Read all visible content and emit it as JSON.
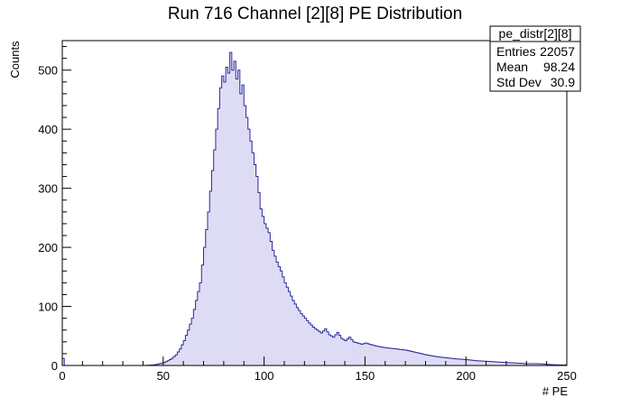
{
  "chart_data": {
    "type": "histogram",
    "title": "Run 716 Channel [2][8] PE Distribution",
    "xlabel": "# PE",
    "ylabel": "Counts",
    "xlim": [
      0,
      250
    ],
    "ylim": [
      0,
      550
    ],
    "x_ticks": [
      0,
      50,
      100,
      150,
      200,
      250
    ],
    "y_ticks": [
      0,
      100,
      200,
      300,
      400,
      500
    ],
    "bin_width": 1,
    "line_color": "#2b2b9c",
    "fill_color": "#7b6fd6",
    "grid": false,
    "legend": "none",
    "stats_box": {
      "name": "pe_distr[2][8]",
      "rows": [
        {
          "label": "Entries",
          "value": "22057"
        },
        {
          "label": "Mean",
          "value": "98.24"
        },
        {
          "label": "Std Dev",
          "value": "30.9"
        }
      ]
    },
    "bins": [
      {
        "x": 0,
        "y": 12
      },
      {
        "x": 1,
        "y": 0
      },
      {
        "x": 40,
        "y": 0
      },
      {
        "x": 45,
        "y": 1
      },
      {
        "x": 48,
        "y": 3
      },
      {
        "x": 50,
        "y": 5
      },
      {
        "x": 52,
        "y": 8
      },
      {
        "x": 54,
        "y": 12
      },
      {
        "x": 56,
        "y": 18
      },
      {
        "x": 58,
        "y": 28
      },
      {
        "x": 60,
        "y": 42
      },
      {
        "x": 62,
        "y": 60
      },
      {
        "x": 64,
        "y": 80
      },
      {
        "x": 66,
        "y": 110
      },
      {
        "x": 68,
        "y": 140
      },
      {
        "x": 70,
        "y": 200
      },
      {
        "x": 72,
        "y": 260
      },
      {
        "x": 74,
        "y": 330
      },
      {
        "x": 76,
        "y": 400
      },
      {
        "x": 78,
        "y": 470
      },
      {
        "x": 79,
        "y": 490
      },
      {
        "x": 80,
        "y": 480
      },
      {
        "x": 81,
        "y": 505
      },
      {
        "x": 82,
        "y": 495
      },
      {
        "x": 83,
        "y": 530
      },
      {
        "x": 84,
        "y": 500
      },
      {
        "x": 85,
        "y": 515
      },
      {
        "x": 86,
        "y": 485
      },
      {
        "x": 87,
        "y": 500
      },
      {
        "x": 88,
        "y": 460
      },
      {
        "x": 89,
        "y": 475
      },
      {
        "x": 90,
        "y": 440
      },
      {
        "x": 91,
        "y": 420
      },
      {
        "x": 92,
        "y": 400
      },
      {
        "x": 94,
        "y": 360
      },
      {
        "x": 96,
        "y": 320
      },
      {
        "x": 98,
        "y": 265
      },
      {
        "x": 100,
        "y": 240
      },
      {
        "x": 102,
        "y": 225
      },
      {
        "x": 104,
        "y": 195
      },
      {
        "x": 106,
        "y": 175
      },
      {
        "x": 108,
        "y": 160
      },
      {
        "x": 110,
        "y": 140
      },
      {
        "x": 112,
        "y": 125
      },
      {
        "x": 114,
        "y": 110
      },
      {
        "x": 116,
        "y": 98
      },
      {
        "x": 118,
        "y": 88
      },
      {
        "x": 120,
        "y": 80
      },
      {
        "x": 122,
        "y": 72
      },
      {
        "x": 124,
        "y": 65
      },
      {
        "x": 126,
        "y": 60
      },
      {
        "x": 128,
        "y": 55
      },
      {
        "x": 130,
        "y": 62
      },
      {
        "x": 132,
        "y": 52
      },
      {
        "x": 134,
        "y": 48
      },
      {
        "x": 136,
        "y": 56
      },
      {
        "x": 138,
        "y": 46
      },
      {
        "x": 140,
        "y": 42
      },
      {
        "x": 142,
        "y": 48
      },
      {
        "x": 144,
        "y": 40
      },
      {
        "x": 146,
        "y": 38
      },
      {
        "x": 148,
        "y": 36
      },
      {
        "x": 150,
        "y": 38
      },
      {
        "x": 155,
        "y": 33
      },
      {
        "x": 160,
        "y": 30
      },
      {
        "x": 165,
        "y": 28
      },
      {
        "x": 170,
        "y": 26
      },
      {
        "x": 175,
        "y": 22
      },
      {
        "x": 180,
        "y": 18
      },
      {
        "x": 185,
        "y": 15
      },
      {
        "x": 190,
        "y": 13
      },
      {
        "x": 195,
        "y": 11
      },
      {
        "x": 200,
        "y": 10
      },
      {
        "x": 205,
        "y": 8
      },
      {
        "x": 210,
        "y": 7
      },
      {
        "x": 215,
        "y": 6
      },
      {
        "x": 220,
        "y": 5
      },
      {
        "x": 225,
        "y": 4
      },
      {
        "x": 230,
        "y": 3
      },
      {
        "x": 235,
        "y": 3
      },
      {
        "x": 240,
        "y": 2
      },
      {
        "x": 245,
        "y": 1
      },
      {
        "x": 249,
        "y": 1
      }
    ]
  }
}
